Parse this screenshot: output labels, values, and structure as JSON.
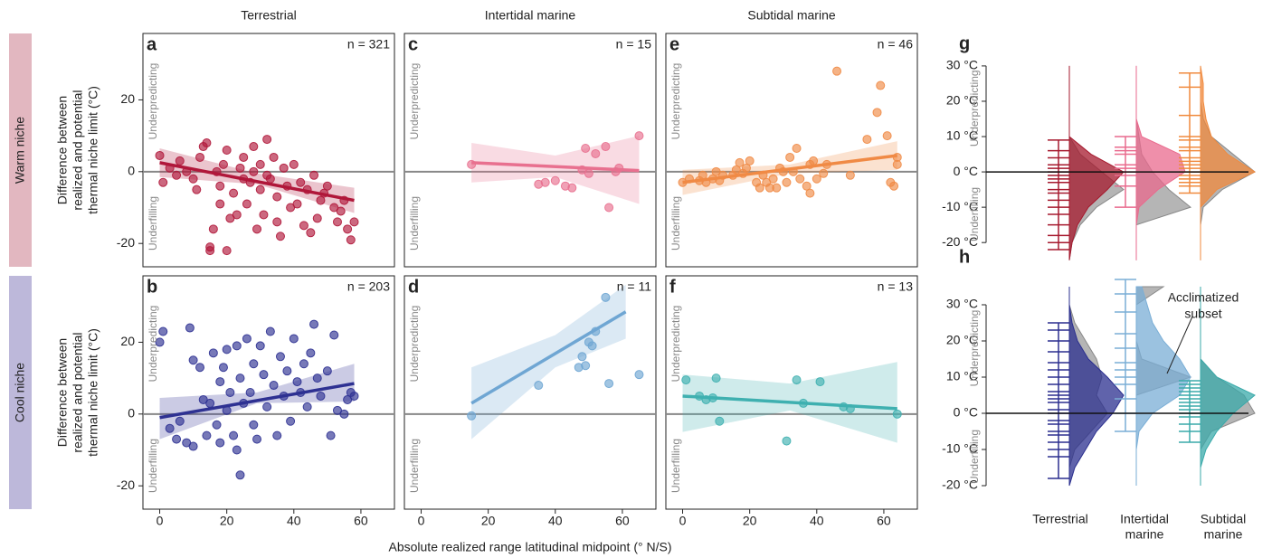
{
  "column_titles": [
    "Terrestrial",
    "Intertidal marine",
    "Subtidal marine"
  ],
  "row_titles": [
    "Warm niche",
    "Cool niche"
  ],
  "y_label": [
    "Difference between",
    "realized and potential",
    "thermal niche limit (°C)"
  ],
  "x_label": "Absolute realized range latitudinal midpoint (° N/S)",
  "group_labels": [
    [
      "Terrestrial"
    ],
    [
      "Intertidal",
      "marine"
    ],
    [
      "Subtidal",
      "marine"
    ]
  ],
  "chart_data": [
    {
      "type": "scatter",
      "label": "a",
      "n_text": "n = 321",
      "underpredicting": "Underpredicting",
      "underfilling": "Underfilling",
      "color": "#b0173a",
      "xlim": [
        -5,
        70
      ],
      "ylim": [
        -26.5,
        38.5
      ],
      "yticks": [
        -20,
        0,
        20
      ],
      "reference_line": 0,
      "x": [
        0,
        1,
        3,
        5,
        6,
        8,
        10,
        11,
        12,
        13,
        14,
        15,
        15,
        16,
        17,
        18,
        18,
        19,
        20,
        20,
        21,
        22,
        23,
        24,
        25,
        25,
        26,
        27,
        28,
        28,
        29,
        30,
        30,
        31,
        32,
        32,
        33,
        34,
        35,
        35,
        36,
        37,
        38,
        39,
        40,
        41,
        42,
        43,
        44,
        45,
        46,
        47,
        48,
        49,
        50,
        52,
        53,
        54,
        55,
        56,
        57,
        58
      ],
      "values": [
        4.5,
        -3,
        1,
        -1,
        3,
        0,
        -2,
        -5,
        4,
        7,
        8,
        -21,
        -22,
        -16,
        0,
        -4,
        -9,
        2,
        6,
        -22,
        -13,
        -6,
        -12,
        1,
        -2,
        4,
        -9,
        -3,
        0,
        7,
        -16,
        2,
        -5,
        -12,
        9,
        -1,
        -2,
        4,
        -7,
        -14,
        -18,
        1,
        -4,
        -10,
        2,
        -9,
        -3,
        -15,
        -5,
        -17,
        -1,
        -13,
        -8,
        -6,
        -4,
        -10,
        -14,
        -11,
        -8,
        -16,
        -19,
        -14
      ],
      "fit": {
        "x": [
          0,
          58
        ],
        "values": [
          2.5,
          -8
        ]
      },
      "band": {
        "x": [
          0,
          29,
          58
        ],
        "lower": [
          -1.5,
          -3.5,
          -11.5
        ],
        "upper": [
          6.5,
          -0.5,
          -4.5
        ]
      }
    },
    {
      "type": "scatter",
      "label": "b",
      "n_text": "n = 203",
      "underpredicting": "Underpredicting",
      "underfilling": "Underfilling",
      "color": "#2e3192",
      "xlim": [
        -5,
        70
      ],
      "ylim": [
        -26.5,
        38.5
      ],
      "yticks": [
        -20,
        0,
        20
      ],
      "xticks": [
        0,
        20,
        40,
        60
      ],
      "reference_line": 0,
      "x": [
        0,
        1,
        3,
        5,
        6,
        8,
        9,
        10,
        10,
        12,
        13,
        14,
        15,
        16,
        17,
        18,
        18,
        19,
        20,
        20,
        21,
        22,
        23,
        23,
        24,
        24,
        25,
        26,
        27,
        28,
        28,
        29,
        30,
        31,
        32,
        33,
        34,
        35,
        36,
        37,
        38,
        39,
        40,
        41,
        42,
        43,
        44,
        45,
        46,
        47,
        48,
        50,
        51,
        52,
        53,
        55,
        56,
        57,
        58
      ],
      "values": [
        20,
        23,
        -4,
        -7,
        -2,
        -8,
        24,
        15,
        -9,
        13,
        4,
        -6,
        3,
        17,
        -3,
        9,
        -8,
        13,
        18,
        1,
        6,
        -6,
        19,
        -10,
        -17,
        10,
        3,
        21,
        6,
        -3,
        14,
        -7,
        19,
        11,
        2,
        23,
        8,
        -6,
        16,
        5,
        12,
        -2,
        21,
        9,
        6,
        14,
        2,
        17,
        25,
        10,
        5,
        12,
        -6,
        22,
        1,
        0,
        4,
        6,
        5
      ],
      "fit": {
        "x": [
          0,
          58
        ],
        "values": [
          -1,
          8.5
        ]
      },
      "band": {
        "x": [
          0,
          29,
          58
        ],
        "lower": [
          -7,
          3,
          3.5
        ],
        "upper": [
          4.5,
          6,
          14
        ]
      }
    },
    {
      "type": "scatter",
      "label": "c",
      "n_text": "n = 15",
      "underpredicting": "Underpredicting",
      "underfilling": "Underfilling",
      "color": "#e8708f",
      "xlim": [
        -5,
        70
      ],
      "ylim": [
        -26.5,
        38.5
      ],
      "reference_line": 0,
      "x": [
        15,
        35,
        37,
        40,
        43,
        45,
        48,
        49,
        50,
        52,
        55,
        56,
        58,
        59,
        65
      ],
      "values": [
        2,
        -3.5,
        -3,
        -2.5,
        -4,
        -4.5,
        0.5,
        6.5,
        -0.5,
        5,
        7,
        -10,
        0,
        1,
        10
      ],
      "fit": {
        "x": [
          15,
          65
        ],
        "values": [
          2.5,
          0.3
        ]
      },
      "band": {
        "x": [
          15,
          40,
          65
        ],
        "lower": [
          -3,
          -1.5,
          -9
        ],
        "upper": [
          8,
          4.5,
          10
        ]
      }
    },
    {
      "type": "scatter",
      "label": "d",
      "n_text": "n = 11",
      "underpredicting": "Underpredicting",
      "underfilling": "Underfilling",
      "color": "#6fa6d3",
      "xlim": [
        -5,
        70
      ],
      "ylim": [
        -26.5,
        38.5
      ],
      "xticks": [
        0,
        20,
        40,
        60
      ],
      "reference_line": 0,
      "x": [
        15,
        35,
        47,
        48,
        49,
        50,
        51,
        52,
        55,
        56,
        65
      ],
      "values": [
        -0.5,
        8,
        13,
        16,
        13.5,
        20,
        19,
        23,
        32.5,
        8.5,
        11
      ],
      "fit": {
        "x": [
          15,
          61
        ],
        "values": [
          3,
          28.5
        ]
      },
      "band": {
        "x": [
          15,
          40,
          61
        ],
        "lower": [
          -7,
          13,
          21
        ],
        "upper": [
          13,
          22,
          36
        ]
      }
    },
    {
      "type": "scatter",
      "label": "e",
      "n_text": "n = 46",
      "underpredicting": "Underpredicting",
      "underfilling": "Underfilling",
      "color": "#f08a45",
      "xlim": [
        -5,
        70
      ],
      "ylim": [
        -26.5,
        38.5
      ],
      "reference_line": 0,
      "x": [
        0,
        2,
        5,
        6,
        7,
        9,
        10,
        11,
        12,
        15,
        16,
        17,
        18,
        19,
        20,
        22,
        23,
        24,
        25,
        26,
        27,
        28,
        29,
        30,
        31,
        32,
        33,
        34,
        35,
        37,
        38,
        38,
        39,
        40,
        42,
        43,
        46,
        50,
        55,
        58,
        59,
        61,
        62,
        63,
        64,
        64
      ],
      "values": [
        -3,
        -2,
        -2.5,
        -1,
        -3,
        -2,
        0,
        -2.5,
        -1,
        -1,
        0.5,
        2.5,
        -0.5,
        1,
        3,
        -3,
        -4.5,
        -1,
        -3,
        -4.5,
        -2,
        -4.5,
        1,
        0,
        -3,
        4,
        0,
        6.5,
        -2,
        -4,
        -6,
        2,
        3,
        -2,
        -0.5,
        2,
        28,
        -1,
        9,
        16.5,
        24,
        10,
        -3,
        -4,
        4,
        2
      ],
      "fit": {
        "x": [
          0,
          64
        ],
        "values": [
          -3,
          4.5
        ]
      },
      "band": {
        "x": [
          0,
          32,
          64
        ],
        "lower": [
          -6.5,
          -0.5,
          0.5
        ],
        "upper": [
          0.5,
          2,
          8.5
        ]
      }
    },
    {
      "type": "scatter",
      "label": "f",
      "n_text": "n = 13",
      "underpredicting": "Underpredicting",
      "underfilling": "Underfilling",
      "color": "#3fb0b0",
      "xlim": [
        -5,
        70
      ],
      "ylim": [
        -26.5,
        38.5
      ],
      "xticks": [
        0,
        20,
        40,
        60
      ],
      "reference_line": 0,
      "x": [
        1,
        5,
        7,
        9,
        10,
        11,
        31,
        34,
        36,
        41,
        48,
        50,
        64
      ],
      "values": [
        9.5,
        5,
        4,
        4.5,
        10,
        -2,
        -7.5,
        9.5,
        3,
        9,
        2,
        1.5,
        0
      ],
      "fit": {
        "x": [
          0,
          64
        ],
        "values": [
          5,
          1.5
        ]
      },
      "band": {
        "x": [
          0,
          32,
          64
        ],
        "lower": [
          -5,
          1,
          -8
        ],
        "upper": [
          11,
          8.5,
          14.5
        ]
      }
    },
    {
      "type": "violin",
      "label": "g",
      "underpredicting": "Underpredicting",
      "underfilling": "Underfilling",
      "ylim": [
        -22,
        31
      ],
      "reference_line": 0,
      "potential_color": "#b5b5b5",
      "yticks": [
        {
          "value": -20,
          "label": "-20 °C"
        },
        {
          "value": -10,
          "label": "-10 °C"
        },
        {
          "value": 0,
          "label": "0 °C"
        },
        {
          "value": 10,
          "label": "10 °C"
        },
        {
          "value": 20,
          "label": "20 °C"
        },
        {
          "value": 30,
          "label": "30 °C"
        }
      ],
      "y_grid": [
        -25,
        -20,
        -15,
        -10,
        -5,
        0,
        5,
        10,
        15,
        20,
        25,
        30
      ],
      "groups": [
        {
          "color": "#a6192e",
          "density": [
            0,
            0.05,
            0.15,
            0.35,
            0.7,
            1,
            0.4,
            0,
            0,
            0,
            0,
            0
          ],
          "potential_density": [
            0,
            0.05,
            0.2,
            0.5,
            1,
            0.6,
            0.2,
            0,
            0,
            0,
            0,
            0
          ],
          "rug": [
            -22,
            -20,
            -18,
            -15,
            -12,
            -10,
            -8,
            -6,
            -5,
            -3,
            -2,
            -1,
            0,
            1,
            2,
            4,
            6,
            9
          ]
        },
        {
          "color": "#e96a8d",
          "density": [
            0,
            0,
            0,
            0.05,
            0.4,
            0.9,
            0.8,
            0.1,
            0,
            0,
            0,
            0
          ],
          "potential_density": [
            0,
            0,
            0,
            1,
            0.6,
            0.3,
            0.1,
            0.05,
            0,
            0,
            0,
            0
          ],
          "rug": [
            -10,
            -4,
            -1,
            0,
            1,
            2,
            5,
            6,
            7,
            10
          ]
        },
        {
          "color": "#f08a3e",
          "density": [
            0,
            0,
            0,
            0,
            0.3,
            1,
            0.5,
            0.2,
            0.1,
            0.05,
            0.05,
            0
          ],
          "potential_density": [
            0,
            0,
            0,
            0.05,
            0.4,
            1,
            0.6,
            0.2,
            0.05,
            0,
            0,
            0
          ],
          "rug": [
            -6,
            -4,
            -3,
            -2,
            -1,
            0,
            1,
            2,
            3,
            4,
            6,
            7,
            9,
            10,
            16,
            24,
            28
          ]
        }
      ]
    },
    {
      "type": "violin",
      "label": "h",
      "underpredicting": "Underpredicting",
      "underfilling": "Underfilling",
      "ylim": [
        -20,
        38
      ],
      "reference_line": 0,
      "potential_color": "#b5b5b5",
      "annotation": [
        "Acclimatized",
        "subset"
      ],
      "yticks": [
        {
          "value": -20,
          "label": "-20 °C"
        },
        {
          "value": -10,
          "label": "-10 °C"
        },
        {
          "value": 0,
          "label": "0 °C"
        },
        {
          "value": 10,
          "label": "10 °C"
        },
        {
          "value": 20,
          "label": "20 °C"
        },
        {
          "value": 30,
          "label": "30 °C"
        }
      ],
      "y_grid": [
        -20,
        -15,
        -10,
        -5,
        0,
        5,
        10,
        15,
        20,
        25,
        30,
        35
      ],
      "groups": [
        {
          "color": "#2b2f8f",
          "density": [
            0,
            0.1,
            0.3,
            0.5,
            0.8,
            1,
            0.7,
            0.35,
            0.15,
            0.05,
            0,
            0
          ],
          "potential_density": [
            0,
            0,
            0.1,
            0.4,
            0.7,
            0.5,
            0.6,
            0.5,
            0.3,
            0.1,
            0,
            0
          ],
          "rug": [
            -18,
            -12,
            -10,
            -8,
            -6,
            -5,
            -3,
            -2,
            0,
            1,
            3,
            4,
            5,
            6,
            8,
            10,
            12,
            14,
            17,
            20,
            23,
            25
          ]
        },
        {
          "color": "#7aaed6",
          "density": [
            0,
            0,
            0,
            0.05,
            0.3,
            0.8,
            1,
            0.8,
            0.5,
            0.3,
            0.2,
            0.1
          ],
          "potential_density": [
            0,
            0,
            0,
            0,
            0,
            0,
            1,
            0.1,
            0,
            0,
            0,
            0.5
          ],
          "rug": [
            -5,
            0,
            4,
            8,
            10,
            12,
            14,
            18,
            22,
            28,
            33,
            37
          ]
        },
        {
          "color": "#3aaaaa",
          "density": [
            0,
            0,
            0.1,
            0.3,
            0.6,
            1,
            0.3,
            0,
            0,
            0,
            0,
            0
          ],
          "potential_density": [
            0,
            0,
            0,
            0.2,
            1,
            0.8,
            0.3,
            0,
            0,
            0,
            0,
            0
          ],
          "rug": [
            -8,
            -5,
            -3,
            -1,
            0,
            1,
            2,
            3,
            4,
            5,
            6,
            7,
            8,
            9
          ]
        }
      ]
    }
  ]
}
